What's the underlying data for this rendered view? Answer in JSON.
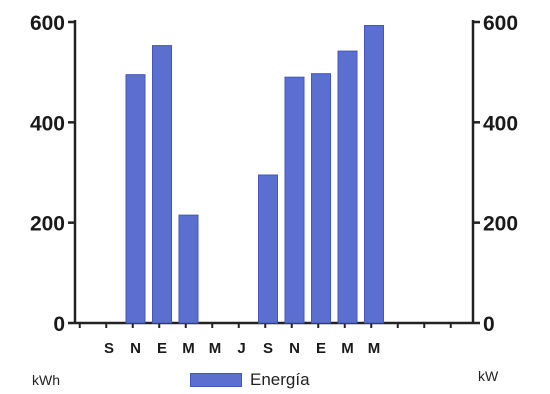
{
  "chart_data": {
    "type": "bar",
    "categories": [
      "S",
      "N",
      "E",
      "M",
      "M",
      "J",
      "S",
      "N",
      "E",
      "M",
      "M"
    ],
    "series": [
      {
        "name": "Energía",
        "values": [
          0,
          495,
          553,
          215,
          0,
          0,
          295,
          490,
          497,
          542,
          593
        ]
      }
    ],
    "ylim": [
      0,
      600
    ],
    "yticks": [
      0,
      200,
      400,
      600
    ],
    "left_axis_unit": "kWh",
    "right_axis_unit": "kW",
    "bar_color": "#5a6fd0",
    "legend_position": "bottom",
    "grid": false
  }
}
